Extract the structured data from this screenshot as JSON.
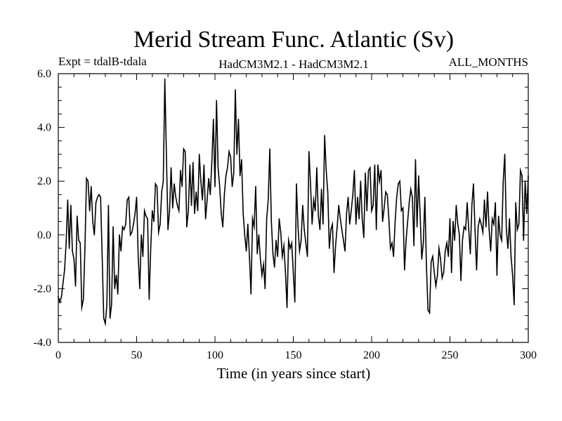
{
  "chart_data": {
    "type": "line",
    "title": "Merid Stream Func. Atlantic (Sv)",
    "subtitle_left": "Expt = tdalB-tdala",
    "subtitle_center": "HadCM3M2.1 - HadCM3M2.1",
    "subtitle_right": "ALL_MONTHS",
    "xlabel": "Time (in years since start)",
    "ylabel": "",
    "xlim": [
      0,
      300
    ],
    "ylim": [
      -4.0,
      6.0
    ],
    "xticks": [
      0,
      50,
      100,
      150,
      200,
      250,
      300
    ],
    "yticks": [
      -4.0,
      -2.0,
      0.0,
      2.0,
      4.0,
      6.0
    ],
    "xtick_labels": [
      "0",
      "50",
      "100",
      "150",
      "200",
      "250",
      "300"
    ],
    "ytick_labels": [
      "-4.0",
      "-2.0",
      "0.0",
      "2.0",
      "4.0",
      "6.0"
    ],
    "grid": false,
    "series": [
      {
        "name": "Merid Stream Func. Atlantic",
        "color": "#000000",
        "points": [
          [
            0,
            -2.3
          ],
          [
            1,
            -2.5
          ],
          [
            2,
            -2.3
          ],
          [
            3,
            -1.8
          ],
          [
            4,
            -1.3
          ],
          [
            5,
            -0.3
          ],
          [
            6,
            1.3
          ],
          [
            7,
            -0.5
          ],
          [
            8,
            1.1
          ],
          [
            9,
            -0.6
          ],
          [
            10,
            -0.9
          ],
          [
            11,
            -1.9
          ],
          [
            12,
            0.7
          ],
          [
            13,
            -0.2
          ],
          [
            14,
            -0.3
          ],
          [
            15,
            -2.7
          ],
          [
            16,
            -2.4
          ],
          [
            17,
            -0.5
          ],
          [
            18,
            2.1
          ],
          [
            19,
            2.0
          ],
          [
            20,
            0.9
          ],
          [
            21,
            1.8
          ],
          [
            22,
            0.5
          ],
          [
            23,
            0.0
          ],
          [
            24,
            1.2
          ],
          [
            25,
            1.4
          ],
          [
            26,
            1.5
          ],
          [
            27,
            1.4
          ],
          [
            28,
            -0.8
          ],
          [
            29,
            -3.1
          ],
          [
            30,
            -3.3
          ],
          [
            31,
            -2.6
          ],
          [
            32,
            1.1
          ],
          [
            33,
            -3.1
          ],
          [
            34,
            -2.6
          ],
          [
            35,
            0.3
          ],
          [
            36,
            -2.0
          ],
          [
            37,
            -1.5
          ],
          [
            38,
            -2.2
          ],
          [
            39,
            0.0
          ],
          [
            40,
            -0.6
          ],
          [
            41,
            0.3
          ],
          [
            42,
            0.2
          ],
          [
            43,
            0.4
          ],
          [
            44,
            1.3
          ],
          [
            45,
            1.4
          ],
          [
            46,
            0.0
          ],
          [
            47,
            0.1
          ],
          [
            48,
            0.4
          ],
          [
            49,
            0.8
          ],
          [
            50,
            1.4
          ],
          [
            51,
            -0.8
          ],
          [
            52,
            -2.0
          ],
          [
            53,
            0.0
          ],
          [
            54,
            -0.8
          ],
          [
            55,
            0.9
          ],
          [
            56,
            0.7
          ],
          [
            57,
            0.6
          ],
          [
            58,
            -2.4
          ],
          [
            59,
            -0.5
          ],
          [
            60,
            0.9
          ],
          [
            61,
            0.5
          ],
          [
            62,
            1.9
          ],
          [
            63,
            1.8
          ],
          [
            64,
            0.1
          ],
          [
            65,
            0.4
          ],
          [
            66,
            1.6
          ],
          [
            67,
            2.0
          ],
          [
            68,
            5.8
          ],
          [
            69,
            3.0
          ],
          [
            70,
            0.2
          ],
          [
            71,
            0.9
          ],
          [
            72,
            2.5
          ],
          [
            73,
            1.0
          ],
          [
            74,
            1.9
          ],
          [
            75,
            1.4
          ],
          [
            76,
            1.1
          ],
          [
            77,
            0.9
          ],
          [
            78,
            2.4
          ],
          [
            79,
            1.8
          ],
          [
            80,
            3.2
          ],
          [
            81,
            3.1
          ],
          [
            82,
            0.3
          ],
          [
            83,
            0.9
          ],
          [
            84,
            2.6
          ],
          [
            85,
            1.1
          ],
          [
            86,
            2.7
          ],
          [
            87,
            0.8
          ],
          [
            88,
            1.6
          ],
          [
            89,
            0.9
          ],
          [
            90,
            3.0
          ],
          [
            91,
            2.0
          ],
          [
            92,
            1.3
          ],
          [
            93,
            2.6
          ],
          [
            94,
            0.6
          ],
          [
            95,
            1.3
          ],
          [
            96,
            2.1
          ],
          [
            97,
            1.5
          ],
          [
            98,
            2.7
          ],
          [
            99,
            4.3
          ],
          [
            100,
            1.8
          ],
          [
            101,
            5.0
          ],
          [
            102,
            2.5
          ],
          [
            103,
            1.8
          ],
          [
            104,
            0.8
          ],
          [
            105,
            0.3
          ],
          [
            106,
            1.5
          ],
          [
            107,
            2.2
          ],
          [
            108,
            2.5
          ],
          [
            109,
            3.1
          ],
          [
            110,
            2.9
          ],
          [
            111,
            1.8
          ],
          [
            112,
            2.3
          ],
          [
            113,
            5.4
          ],
          [
            114,
            3.0
          ],
          [
            115,
            4.3
          ],
          [
            116,
            2.2
          ],
          [
            117,
            2.8
          ],
          [
            118,
            0.8
          ],
          [
            119,
            0.0
          ],
          [
            120,
            -0.6
          ],
          [
            121,
            0.4
          ],
          [
            122,
            -0.8
          ],
          [
            123,
            -2.2
          ],
          [
            124,
            0.6
          ],
          [
            125,
            0.3
          ],
          [
            126,
            1.8
          ],
          [
            127,
            -0.7
          ],
          [
            128,
            0.0
          ],
          [
            129,
            -0.9
          ],
          [
            130,
            -1.5
          ],
          [
            131,
            -1.1
          ],
          [
            132,
            -2.0
          ],
          [
            133,
            0.6
          ],
          [
            134,
            1.3
          ],
          [
            135,
            3.2
          ],
          [
            136,
            0.5
          ],
          [
            137,
            -0.7
          ],
          [
            138,
            -1.2
          ],
          [
            139,
            -0.2
          ],
          [
            140,
            -0.8
          ],
          [
            141,
            0.6
          ],
          [
            142,
            0.1
          ],
          [
            143,
            -0.8
          ],
          [
            144,
            -0.4
          ],
          [
            145,
            -1.4
          ],
          [
            146,
            -2.7
          ],
          [
            147,
            -0.2
          ],
          [
            148,
            -0.5
          ],
          [
            149,
            -0.3
          ],
          [
            150,
            -1.4
          ],
          [
            151,
            -2.5
          ],
          [
            152,
            1.9
          ],
          [
            153,
            0.3
          ],
          [
            154,
            -0.6
          ],
          [
            155,
            -0.2
          ],
          [
            156,
            1.1
          ],
          [
            157,
            0.2
          ],
          [
            158,
            -0.3
          ],
          [
            159,
            -0.8
          ],
          [
            160,
            3.1
          ],
          [
            161,
            1.9
          ],
          [
            162,
            0.4
          ],
          [
            163,
            1.3
          ],
          [
            164,
            0.9
          ],
          [
            165,
            2.5
          ],
          [
            166,
            0.7
          ],
          [
            167,
            0.2
          ],
          [
            168,
            1.7
          ],
          [
            169,
            0.4
          ],
          [
            170,
            3.7
          ],
          [
            171,
            2.4
          ],
          [
            172,
            1.6
          ],
          [
            173,
            -0.5
          ],
          [
            174,
            0.2
          ],
          [
            175,
            0.4
          ],
          [
            176,
            -1.4
          ],
          [
            177,
            -0.4
          ],
          [
            178,
            0.3
          ],
          [
            179,
            1.1
          ],
          [
            180,
            0.6
          ],
          [
            181,
            0.2
          ],
          [
            182,
            -0.2
          ],
          [
            183,
            -0.6
          ],
          [
            184,
            0.8
          ],
          [
            185,
            1.4
          ],
          [
            186,
            0.4
          ],
          [
            187,
            0.9
          ],
          [
            188,
            1.5
          ],
          [
            189,
            2.4
          ],
          [
            190,
            0.4
          ],
          [
            191,
            1.4
          ],
          [
            192,
            0.6
          ],
          [
            193,
            2.0
          ],
          [
            194,
            0.6
          ],
          [
            195,
            -0.1
          ],
          [
            196,
            2.3
          ],
          [
            197,
            0.9
          ],
          [
            198,
            2.4
          ],
          [
            199,
            2.5
          ],
          [
            200,
            0.9
          ],
          [
            201,
            1.1
          ],
          [
            202,
            2.6
          ],
          [
            203,
            0.2
          ],
          [
            204,
            2.6
          ],
          [
            205,
            2.0
          ],
          [
            206,
            2.4
          ],
          [
            207,
            0.5
          ],
          [
            208,
            1.0
          ],
          [
            209,
            1.6
          ],
          [
            210,
            1.5
          ],
          [
            211,
            0.6
          ],
          [
            212,
            -0.5
          ],
          [
            213,
            -0.3
          ],
          [
            214,
            -0.8
          ],
          [
            215,
            0.5
          ],
          [
            216,
            1.4
          ],
          [
            217,
            1.9
          ],
          [
            218,
            2.0
          ],
          [
            219,
            0.9
          ],
          [
            220,
            1.0
          ],
          [
            221,
            -1.3
          ],
          [
            222,
            -0.2
          ],
          [
            223,
            0.5
          ],
          [
            224,
            1.2
          ],
          [
            225,
            1.7
          ],
          [
            226,
            1.4
          ],
          [
            227,
            -0.4
          ],
          [
            228,
            2.8
          ],
          [
            229,
            0.3
          ],
          [
            230,
            2.2
          ],
          [
            231,
            0.7
          ],
          [
            232,
            -0.9
          ],
          [
            233,
            -0.3
          ],
          [
            234,
            1.4
          ],
          [
            235,
            -1.2
          ],
          [
            236,
            -2.8
          ],
          [
            237,
            -2.9
          ],
          [
            238,
            -1.0
          ],
          [
            239,
            -0.8
          ],
          [
            240,
            -1.4
          ],
          [
            241,
            -1.9
          ],
          [
            242,
            -1.5
          ],
          [
            243,
            -0.5
          ],
          [
            244,
            -0.9
          ],
          [
            245,
            -1.6
          ],
          [
            246,
            -1.4
          ],
          [
            247,
            -0.6
          ],
          [
            248,
            -0.3
          ],
          [
            249,
            -0.8
          ],
          [
            250,
            0.6
          ],
          [
            251,
            -1.4
          ],
          [
            252,
            0.5
          ],
          [
            253,
            -0.2
          ],
          [
            254,
            1.1
          ],
          [
            255,
            0.4
          ],
          [
            256,
            0.0
          ],
          [
            257,
            -1.7
          ],
          [
            258,
            -0.2
          ],
          [
            259,
            0.3
          ],
          [
            260,
            0.2
          ],
          [
            261,
            1.2
          ],
          [
            262,
            0.2
          ],
          [
            263,
            -0.7
          ],
          [
            264,
            1.1
          ],
          [
            265,
            1.9
          ],
          [
            266,
            0.2
          ],
          [
            267,
            -1.3
          ],
          [
            268,
            0.3
          ],
          [
            269,
            0.6
          ],
          [
            270,
            0.4
          ],
          [
            271,
            0.1
          ],
          [
            272,
            1.3
          ],
          [
            273,
            0.3
          ],
          [
            274,
            1.6
          ],
          [
            275,
            0.2
          ],
          [
            276,
            -0.6
          ],
          [
            277,
            0.6
          ],
          [
            278,
            0.4
          ],
          [
            279,
            1.2
          ],
          [
            280,
            -1.5
          ],
          [
            281,
            0.7
          ],
          [
            282,
            0.0
          ],
          [
            283,
            -0.2
          ],
          [
            284,
            2.0
          ],
          [
            285,
            3.0
          ],
          [
            286,
            0.2
          ],
          [
            287,
            -0.5
          ],
          [
            288,
            0.6
          ],
          [
            289,
            -0.8
          ],
          [
            290,
            -1.5
          ],
          [
            291,
            -2.6
          ],
          [
            292,
            1.2
          ],
          [
            293,
            0.2
          ],
          [
            294,
            0.4
          ],
          [
            295,
            2.4
          ],
          [
            296,
            2.2
          ],
          [
            297,
            -0.2
          ],
          [
            298,
            2.0
          ],
          [
            299,
            0.8
          ],
          [
            300,
            2.2
          ]
        ]
      }
    ]
  }
}
